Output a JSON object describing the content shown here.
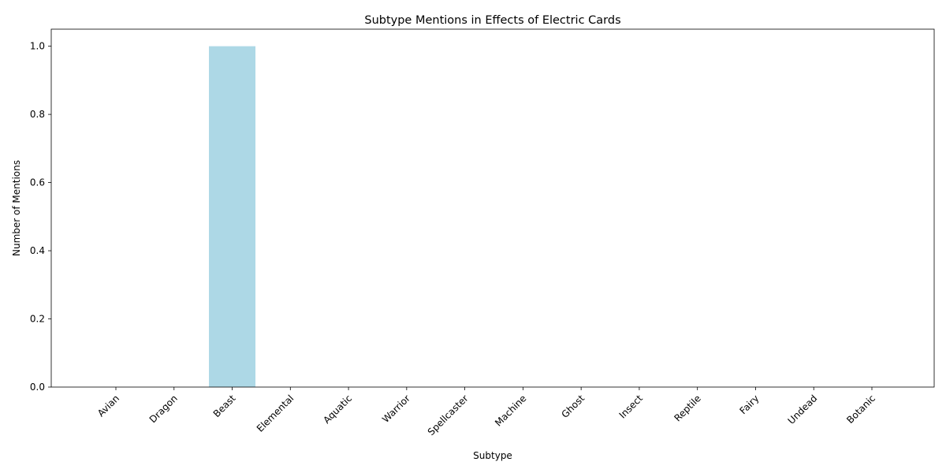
{
  "chart_data": {
    "type": "bar",
    "title": "Subtype Mentions in Effects of Electric Cards",
    "xlabel": "Subtype",
    "ylabel": "Number of Mentions",
    "categories": [
      "Avian",
      "Dragon",
      "Beast",
      "Elemental",
      "Aquatic",
      "Warrior",
      "Spellcaster",
      "Machine",
      "Ghost",
      "Insect",
      "Reptile",
      "Fairy",
      "Undead",
      "Botanic"
    ],
    "values": [
      0,
      0,
      1,
      0,
      0,
      0,
      0,
      0,
      0,
      0,
      0,
      0,
      0,
      0
    ],
    "ylim": [
      0,
      1.05
    ],
    "yticks": [
      0.0,
      0.2,
      0.4,
      0.6,
      0.8,
      1.0
    ],
    "ytick_labels": [
      "0.0",
      "0.2",
      "0.4",
      "0.6",
      "0.8",
      "1.0"
    ],
    "bar_color": "#add8e6",
    "grid": false,
    "legend": "none"
  }
}
